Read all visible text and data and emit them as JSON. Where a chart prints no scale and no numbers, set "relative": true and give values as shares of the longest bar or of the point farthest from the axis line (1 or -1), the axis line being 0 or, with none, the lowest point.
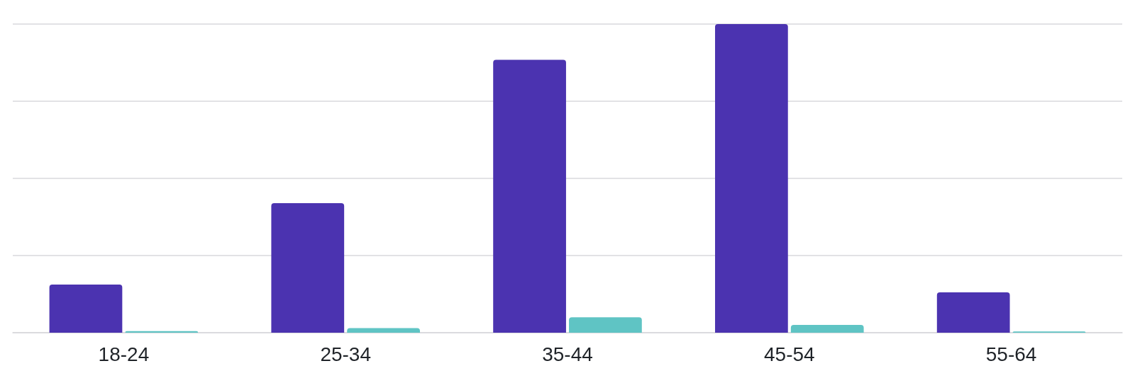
{
  "chart_data": {
    "type": "bar",
    "relative": true,
    "categories": [
      "18-24",
      "25-34",
      "35-44",
      "45-54",
      "55-64"
    ],
    "series": [
      {
        "color": "#4b33b0",
        "values": [
          0.156,
          0.42,
          0.884,
          1,
          0.131
        ]
      },
      {
        "color": "#5fc4c4",
        "values": [
          0.005,
          0.015,
          0.05,
          0.025,
          0.004
        ]
      }
    ],
    "grid": "y"
  }
}
